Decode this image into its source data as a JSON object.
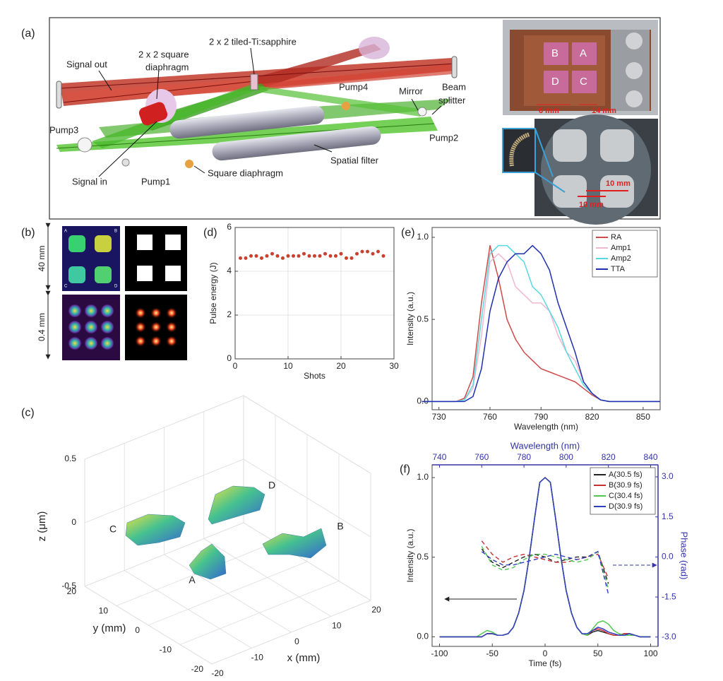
{
  "panel_labels": [
    "(a)",
    "(b)",
    "(c)",
    "(d)",
    "(e)",
    "(f)"
  ],
  "setup_diagram": {
    "labels": [
      "2 x 2 tiled-Ti:sapphire",
      "Signal out",
      "2 x 2 square",
      "diaphragm",
      "Pump4",
      "Mirror",
      "Beam",
      "splitter",
      "Pump3",
      "Pump2",
      "Spatial filter",
      "Signal in",
      "Pump1",
      "Square diaphragm"
    ]
  },
  "crystal_photo": {
    "labels": [
      "B",
      "A",
      "D",
      "C",
      "6 mm",
      "14 mm",
      "10 mm",
      "10 mm"
    ]
  },
  "beam_profiles": {
    "corner_labels": [
      "A",
      "B",
      "C",
      "D"
    ],
    "scales": [
      "40 mm",
      "0.4 mm"
    ]
  },
  "chart_data": [
    {
      "type": "scatter",
      "xlabel": "Shots",
      "ylabel": "Pulse energy (J)",
      "color": "#c8402e",
      "grid": true,
      "x": [
        1,
        2,
        3,
        4,
        5,
        6,
        7,
        8,
        9,
        10,
        11,
        12,
        13,
        14,
        15,
        16,
        17,
        18,
        19,
        20,
        21,
        22,
        23,
        24,
        25,
        26,
        27,
        28
      ],
      "values": [
        4.6,
        4.6,
        4.7,
        4.7,
        4.6,
        4.7,
        4.8,
        4.7,
        4.6,
        4.7,
        4.7,
        4.7,
        4.8,
        4.7,
        4.7,
        4.7,
        4.8,
        4.7,
        4.7,
        4.8,
        4.6,
        4.6,
        4.8,
        4.9,
        4.9,
        4.8,
        4.9,
        4.7
      ],
      "xlim": [
        0,
        30
      ],
      "xticks": [
        0,
        10,
        20,
        30
      ],
      "ylim": [
        0,
        6
      ],
      "yticks": [
        0,
        2,
        4,
        6
      ]
    },
    {
      "type": "line",
      "xlabel": "Wavelength (nm)",
      "ylabel": "Intensity (a.u.)",
      "legend": "upper right",
      "x": [
        720,
        725,
        730,
        735,
        740,
        745,
        750,
        755,
        760,
        765,
        770,
        775,
        780,
        785,
        790,
        795,
        800,
        805,
        810,
        815,
        820,
        825,
        830,
        835,
        840,
        845,
        850,
        855,
        860
      ],
      "series": [
        {
          "name": "RA",
          "color": "#d04a4a",
          "values": [
            0,
            0,
            0,
            0,
            0,
            0.02,
            0.15,
            0.6,
            0.95,
            0.75,
            0.5,
            0.38,
            0.3,
            0.25,
            0.2,
            0.18,
            0.16,
            0.14,
            0.12,
            0.08,
            0.04,
            0.01,
            0,
            0,
            0,
            0,
            0,
            0,
            0
          ]
        },
        {
          "name": "Amp1",
          "color": "#f0b8d0",
          "values": [
            0,
            0,
            0,
            0,
            0,
            0.01,
            0.08,
            0.4,
            0.85,
            0.9,
            0.85,
            0.7,
            0.65,
            0.6,
            0.6,
            0.55,
            0.4,
            0.3,
            0.25,
            0.12,
            0.05,
            0.01,
            0,
            0,
            0,
            0,
            0,
            0,
            0
          ]
        },
        {
          "name": "Amp2",
          "color": "#5ad8e0",
          "values": [
            0,
            0,
            0,
            0,
            0,
            0.01,
            0.1,
            0.5,
            0.9,
            0.95,
            0.95,
            0.9,
            0.85,
            0.7,
            0.65,
            0.55,
            0.45,
            0.3,
            0.2,
            0.1,
            0.05,
            0.01,
            0,
            0,
            0,
            0,
            0,
            0,
            0
          ]
        },
        {
          "name": "TTA",
          "color": "#2030b0",
          "values": [
            0,
            0,
            0,
            0,
            0,
            0,
            0.03,
            0.2,
            0.55,
            0.75,
            0.85,
            0.9,
            0.9,
            0.95,
            0.9,
            0.8,
            0.6,
            0.45,
            0.3,
            0.12,
            0.05,
            0.01,
            0,
            0,
            0,
            0,
            0,
            0,
            0
          ]
        }
      ],
      "xlim": [
        726,
        860
      ],
      "xticks": [
        730,
        760,
        790,
        820,
        850
      ],
      "ylim": [
        -0.05,
        1.06
      ],
      "yticks": [
        {
          "value": 0,
          "label": "0.0"
        },
        {
          "value": 0.5,
          "label": "0.5"
        },
        {
          "value": 1,
          "label": "1.0"
        }
      ]
    },
    {
      "type": "line",
      "xlabel": "Time (fs)",
      "ylabel": "Intensity (a.u.)",
      "x2label": "Wavelength (nm)",
      "y2label": "Phase (rad)",
      "secondary_color": "#3333aa",
      "legend": "upper right",
      "x": [
        -100,
        -95,
        -90,
        -85,
        -80,
        -75,
        -70,
        -65,
        -60,
        -55,
        -50,
        -45,
        -40,
        -35,
        -30,
        -25,
        -20,
        -15,
        -10,
        -5,
        0,
        5,
        10,
        15,
        20,
        25,
        30,
        35,
        40,
        45,
        50,
        55,
        60,
        65,
        70,
        75,
        80,
        85,
        90,
        95,
        100
      ],
      "series": [
        {
          "name": "A(30.5 fs)",
          "color": "#222222",
          "values": [
            0,
            0,
            0,
            0,
            0,
            0,
            0,
            0,
            0,
            0.02,
            0.02,
            0.01,
            0.01,
            0.02,
            0.06,
            0.15,
            0.29,
            0.5,
            0.74,
            0.97,
            1,
            0.97,
            0.74,
            0.5,
            0.29,
            0.15,
            0.06,
            0.02,
            0.01,
            0.03,
            0.04,
            0.03,
            0.02,
            0.01,
            0.01,
            0.02,
            0.02,
            0.01,
            0,
            0,
            0
          ]
        },
        {
          "name": "B(30.9 fs)",
          "color": "#c83030",
          "values": [
            0,
            0,
            0,
            0,
            0,
            0,
            0,
            0,
            0,
            0.02,
            0.02,
            0.01,
            0.01,
            0.02,
            0.06,
            0.15,
            0.29,
            0.5,
            0.74,
            0.97,
            1,
            0.97,
            0.74,
            0.5,
            0.29,
            0.15,
            0.06,
            0.02,
            0.01,
            0.04,
            0.05,
            0.04,
            0.02,
            0.01,
            0.01,
            0.02,
            0.02,
            0.01,
            0,
            0,
            0
          ]
        },
        {
          "name": "C(30.4 fs)",
          "color": "#50c850",
          "values": [
            0,
            0,
            0,
            0,
            0,
            0,
            0,
            0,
            0.02,
            0.04,
            0.03,
            0.01,
            0.01,
            0.02,
            0.06,
            0.15,
            0.29,
            0.5,
            0.74,
            0.97,
            1,
            0.97,
            0.74,
            0.5,
            0.29,
            0.15,
            0.06,
            0.02,
            0.01,
            0.05,
            0.09,
            0.1,
            0.08,
            0.04,
            0.02,
            0.01,
            0.01,
            0.01,
            0,
            0,
            0
          ]
        },
        {
          "name": "D(30.9 fs)",
          "color": "#3040c0",
          "values": [
            0,
            0,
            0,
            0,
            0,
            0,
            0,
            0,
            0,
            0.02,
            0.02,
            0.01,
            0.01,
            0.02,
            0.06,
            0.15,
            0.29,
            0.5,
            0.74,
            0.97,
            1,
            0.97,
            0.74,
            0.5,
            0.29,
            0.15,
            0.06,
            0.02,
            0.02,
            0.04,
            0.06,
            0.05,
            0.03,
            0.02,
            0.01,
            0.01,
            0.02,
            0.01,
            0,
            0,
            0
          ]
        }
      ],
      "phase_series": [
        {
          "color": "#222222",
          "axis": "y2",
          "x": [
            760,
            765,
            770,
            775,
            780,
            785,
            790,
            795,
            800,
            805,
            810,
            815,
            820
          ],
          "values": [
            0.3,
            -0.2,
            -0.4,
            -0.2,
            0,
            0.1,
            0,
            -0.2,
            -0.1,
            0,
            0,
            0.2,
            -1.0
          ]
        },
        {
          "color": "#c83030",
          "axis": "y2",
          "x": [
            760,
            765,
            770,
            775,
            780,
            785,
            790,
            795,
            800,
            805,
            810,
            815,
            820
          ],
          "values": [
            0.6,
            0.1,
            -0.2,
            0,
            0.1,
            0,
            -0.1,
            -0.2,
            -0.2,
            -0.1,
            0,
            0.1,
            -0.8
          ]
        },
        {
          "color": "#50c850",
          "axis": "y2",
          "x": [
            760,
            765,
            770,
            775,
            780,
            785,
            790,
            795,
            800,
            805,
            810,
            815,
            820
          ],
          "values": [
            0.4,
            -0.3,
            -0.5,
            -0.4,
            -0.1,
            0.1,
            0.1,
            0,
            -0.1,
            -0.2,
            -0.1,
            0.2,
            -1.2
          ]
        },
        {
          "color": "#3040c0",
          "axis": "y2",
          "x": [
            760,
            765,
            770,
            775,
            780,
            785,
            790,
            795,
            800,
            805,
            810,
            815,
            820
          ],
          "values": [
            0.2,
            -0.1,
            -0.3,
            -0.3,
            -0.2,
            -0.1,
            0,
            0.1,
            0,
            -0.1,
            0,
            0.2,
            -1.4
          ]
        }
      ],
      "xlim": [
        -107,
        107
      ],
      "xticks": [
        -100,
        -50,
        0,
        50,
        100
      ],
      "x2lim": [
        736.5,
        843.5
      ],
      "x2ticks": [
        740,
        760,
        780,
        800,
        820,
        840
      ],
      "ylim": [
        -0.06,
        1.08
      ],
      "yticks": [
        {
          "value": 0,
          "label": "0.0"
        },
        {
          "value": 0.5,
          "label": "0.5"
        },
        {
          "value": 1,
          "label": "1.0"
        }
      ],
      "y2lim": [
        -3.35,
        3.45
      ],
      "y2ticks": [
        {
          "value": 3,
          "label": "3.0"
        },
        {
          "value": 1.5,
          "label": "1.5"
        },
        {
          "value": 0,
          "label": "0.0"
        },
        {
          "value": -1.5,
          "label": "-1.5"
        },
        {
          "value": -3,
          "label": "-3.0"
        }
      ]
    },
    {
      "type": "surface3d",
      "xlabel": "x (mm)",
      "ylabel": "y (mm)",
      "zlabel": "z (μm)",
      "annotations": [
        "D",
        "C",
        "B",
        "A"
      ],
      "xlim": [
        -20,
        20
      ],
      "xticks": [
        -20,
        -10,
        0,
        10,
        20
      ],
      "ylim": [
        -20,
        20
      ],
      "yticks": [
        20,
        10,
        0,
        -10,
        -20
      ],
      "zlim": [
        -0.5,
        0.5
      ],
      "zticks": [
        0.5,
        0,
        -0.5
      ]
    }
  ]
}
